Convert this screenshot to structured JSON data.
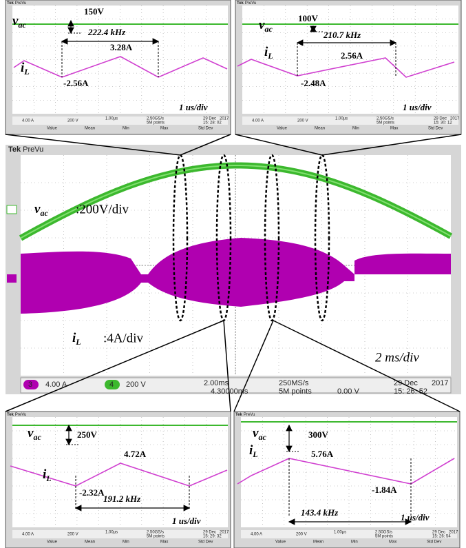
{
  "main": {
    "brand": "Tek",
    "mode": "PreVu",
    "vac_symbol": "v",
    "vac_subscript": "ac",
    "vac_scale": ":200V/div",
    "il_symbol": "i",
    "il_subscript": "L",
    "il_scale": ":4A/div",
    "timebase": "2 ms/div",
    "status": {
      "ch3": "3",
      "ch3_scale": "4.00 A",
      "ch4": "4",
      "ch4_scale": "200 V",
      "horizontal": "2.00ms",
      "sample_rate": "250MS/s",
      "position": "4.30000ms",
      "record": "5M points",
      "trigger_level": "0.00 V",
      "date": "29 Dec",
      "year": "2017",
      "time": "15: 26: 52"
    }
  },
  "insets": [
    {
      "voltage": "150V",
      "frequency": "222.4 kHz",
      "peak": "3.28A",
      "valley": "-2.56A",
      "timebase": "1 us/div",
      "time": "15: 28: 02"
    },
    {
      "voltage": "100V",
      "frequency": "210.7 kHz",
      "peak": "2.56A",
      "valley": "-2.48A",
      "timebase": "1 us/div",
      "time": "15: 30: 12"
    },
    {
      "voltage": "250V",
      "frequency": "191.2 kHz",
      "peak": "4.72A",
      "valley": "-2.32A",
      "timebase": "1 us/div",
      "time": "15: 29: 32"
    },
    {
      "voltage": "300V",
      "frequency": "143.4 kHz",
      "peak": "5.76A",
      "valley": "-1.84A",
      "timebase": "1 us/div",
      "time": "15: 26: 54"
    }
  ],
  "inset_common": {
    "brand": "Tek",
    "mode": "PreVu",
    "ch3_scale": "4.00 A",
    "ch4_scale": "200 V",
    "horizontal": "1.00µs",
    "sample_rate": "2.50GS/s",
    "record": "5M points",
    "date": "29 Dec",
    "year": "2017",
    "measure_headers": [
      "Value",
      "Mean",
      "Min",
      "Max",
      "Std Dev"
    ]
  }
}
